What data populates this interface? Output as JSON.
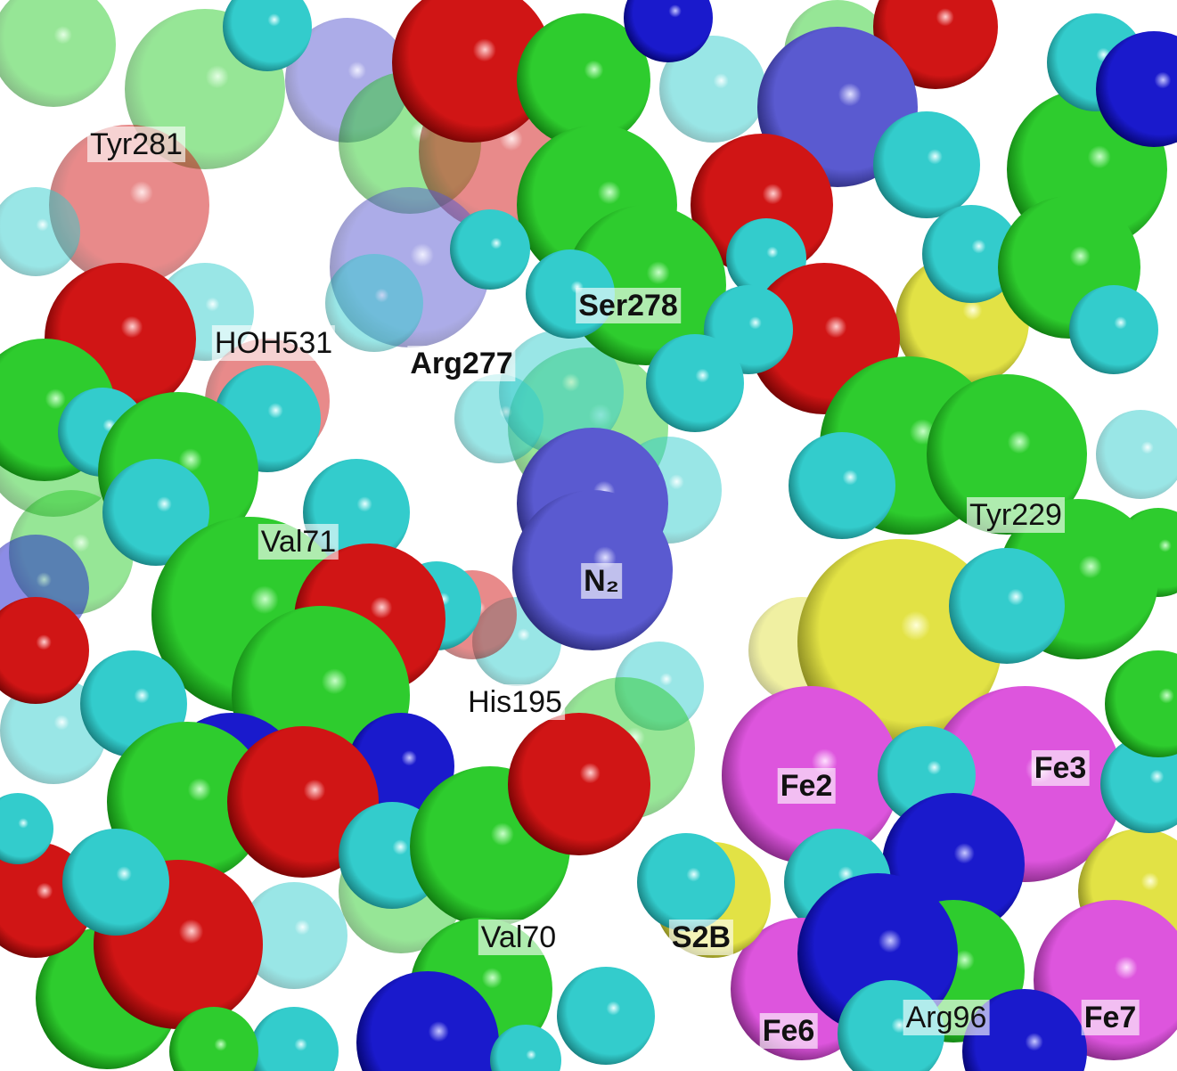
{
  "labels": [
    "Tyr281",
    "HOH531",
    "Arg277",
    "Ser278",
    "Val71",
    "N₂",
    "Tyr229",
    "His195",
    "Fe2",
    "Fe3",
    "Val70",
    "S2B",
    "Fe6",
    "Arg96",
    "Fe7"
  ]
}
